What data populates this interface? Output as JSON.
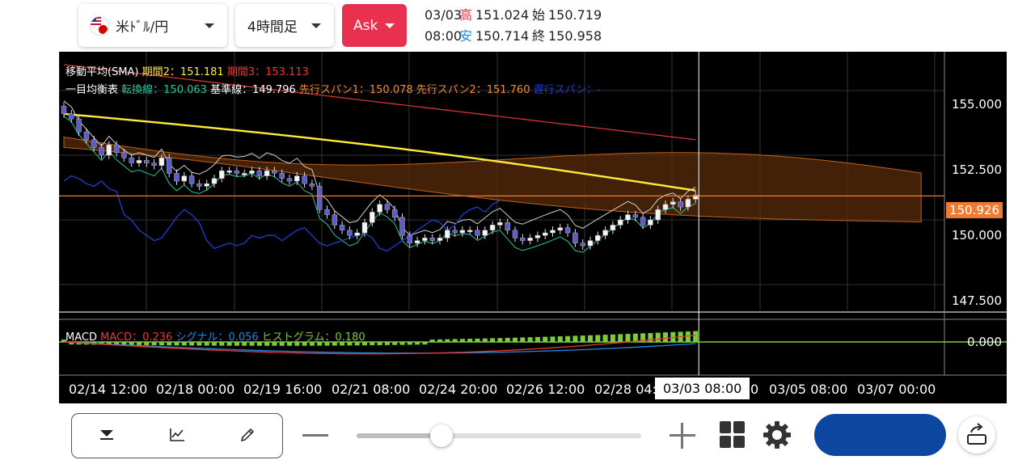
{
  "header": {
    "pair": {
      "label": "米ﾄﾞﾙ/円",
      "icon": "us-jp-flag-icon"
    },
    "timeframe": {
      "label": "4時間足"
    },
    "side": {
      "label": "Ask",
      "color": "#e8304f"
    },
    "ohlc": {
      "date": "03/03",
      "time": "08:00",
      "high_label": "高",
      "high": "151.024",
      "low_label": "安",
      "low": "150.714",
      "open_label": "始",
      "open": "150.719",
      "close_label": "終",
      "close": "150.958"
    }
  },
  "chart": {
    "sma_legend": {
      "title": "移動平均(SMA)",
      "p2": "期間2：151.181",
      "p2_color": "#ffeb3b",
      "p3": "期間3：153.113",
      "p3_color": "#e53935"
    },
    "ichimoku_legend": {
      "title": "一目均衡表",
      "tenkan": "転換線：150.063",
      "tenkan_color": "#26c6a0",
      "kijun": "基準線：149.796",
      "kijun_color": "#ffffff",
      "span1": "先行スパン1：150.078",
      "span1_color": "#f08a30",
      "span2": "先行スパン2：151.760",
      "span2_color": "#f08a30",
      "chikou": "遅行スパン：-",
      "chikou_color": "#1e3fd0"
    },
    "macd_legend": {
      "title": "MACD",
      "macd": "MACD：0.236",
      "macd_color": "#e53935",
      "signal": "シグナル：0.056",
      "signal_color": "#1e88e5",
      "hist": "ヒストグラム：0.180",
      "hist_color": "#7ccd3c"
    },
    "current_price": "150.926",
    "current_price_color": "#f07a30",
    "y_labels": [
      "155.000",
      "152.500",
      "150.000",
      "147.500"
    ],
    "macd_y_label": "0.000",
    "x_labels": [
      "02/14 12:00",
      "02/18 00:00",
      "02/19 16:00",
      "02/21 08:00",
      "02/24 20:00",
      "02/26 12:00",
      "02/28 04:",
      "0",
      "03/05 08:00",
      "03/07 00:00"
    ],
    "x_selected": "03/03 08:00"
  },
  "chart_data": {
    "type": "candlestick",
    "y_axis": {
      "min": 147.5,
      "max": 155.0,
      "ticks": [
        147.5,
        150.0,
        152.5,
        155.0
      ]
    },
    "x_axis_labels": [
      "02/14 12:00",
      "02/18 00:00",
      "02/19 16:00",
      "02/21 08:00",
      "02/24 20:00",
      "02/26 12:00",
      "02/28 04:",
      "03/03 08:00",
      "03/05 08:00",
      "03/07 00:00"
    ],
    "current_price": 150.926,
    "selected_candle": {
      "time": "03/03 08:00",
      "open": 150.719,
      "high": 151.024,
      "low": 150.714,
      "close": 150.958
    },
    "indicators": {
      "sma_period2": 151.181,
      "sma_period3": 153.113,
      "tenkan": 150.063,
      "kijun": 149.796,
      "senkou_span1": 150.078,
      "senkou_span2": 151.76,
      "macd": 0.236,
      "signal": 0.056,
      "histogram": 0.18
    },
    "closes": [
      154.1,
      153.9,
      153.4,
      153.1,
      152.8,
      152.5,
      152.9,
      152.6,
      152.4,
      152.2,
      152.3,
      152.2,
      152.1,
      152.4,
      151.8,
      151.5,
      151.7,
      151.4,
      151.3,
      151.4,
      151.6,
      151.9,
      151.9,
      151.8,
      151.8,
      151.9,
      151.7,
      151.9,
      151.8,
      151.6,
      151.5,
      151.7,
      151.4,
      151.3,
      150.4,
      150.2,
      149.8,
      149.6,
      149.4,
      149.5,
      149.9,
      150.3,
      150.6,
      150.4,
      150.1,
      149.4,
      149.1,
      149.2,
      149.3,
      149.2,
      149.3,
      149.6,
      149.5,
      149.6,
      149.6,
      149.4,
      149.6,
      149.8,
      149.9,
      149.6,
      149.3,
      149.2,
      149.3,
      149.4,
      149.5,
      149.6,
      149.7,
      149.5,
      149.1,
      149.0,
      149.2,
      149.4,
      149.6,
      149.8,
      150.0,
      150.2,
      150.1,
      149.8,
      150.0,
      150.4,
      150.6,
      150.7,
      150.5,
      150.8,
      150.96
    ]
  }
}
